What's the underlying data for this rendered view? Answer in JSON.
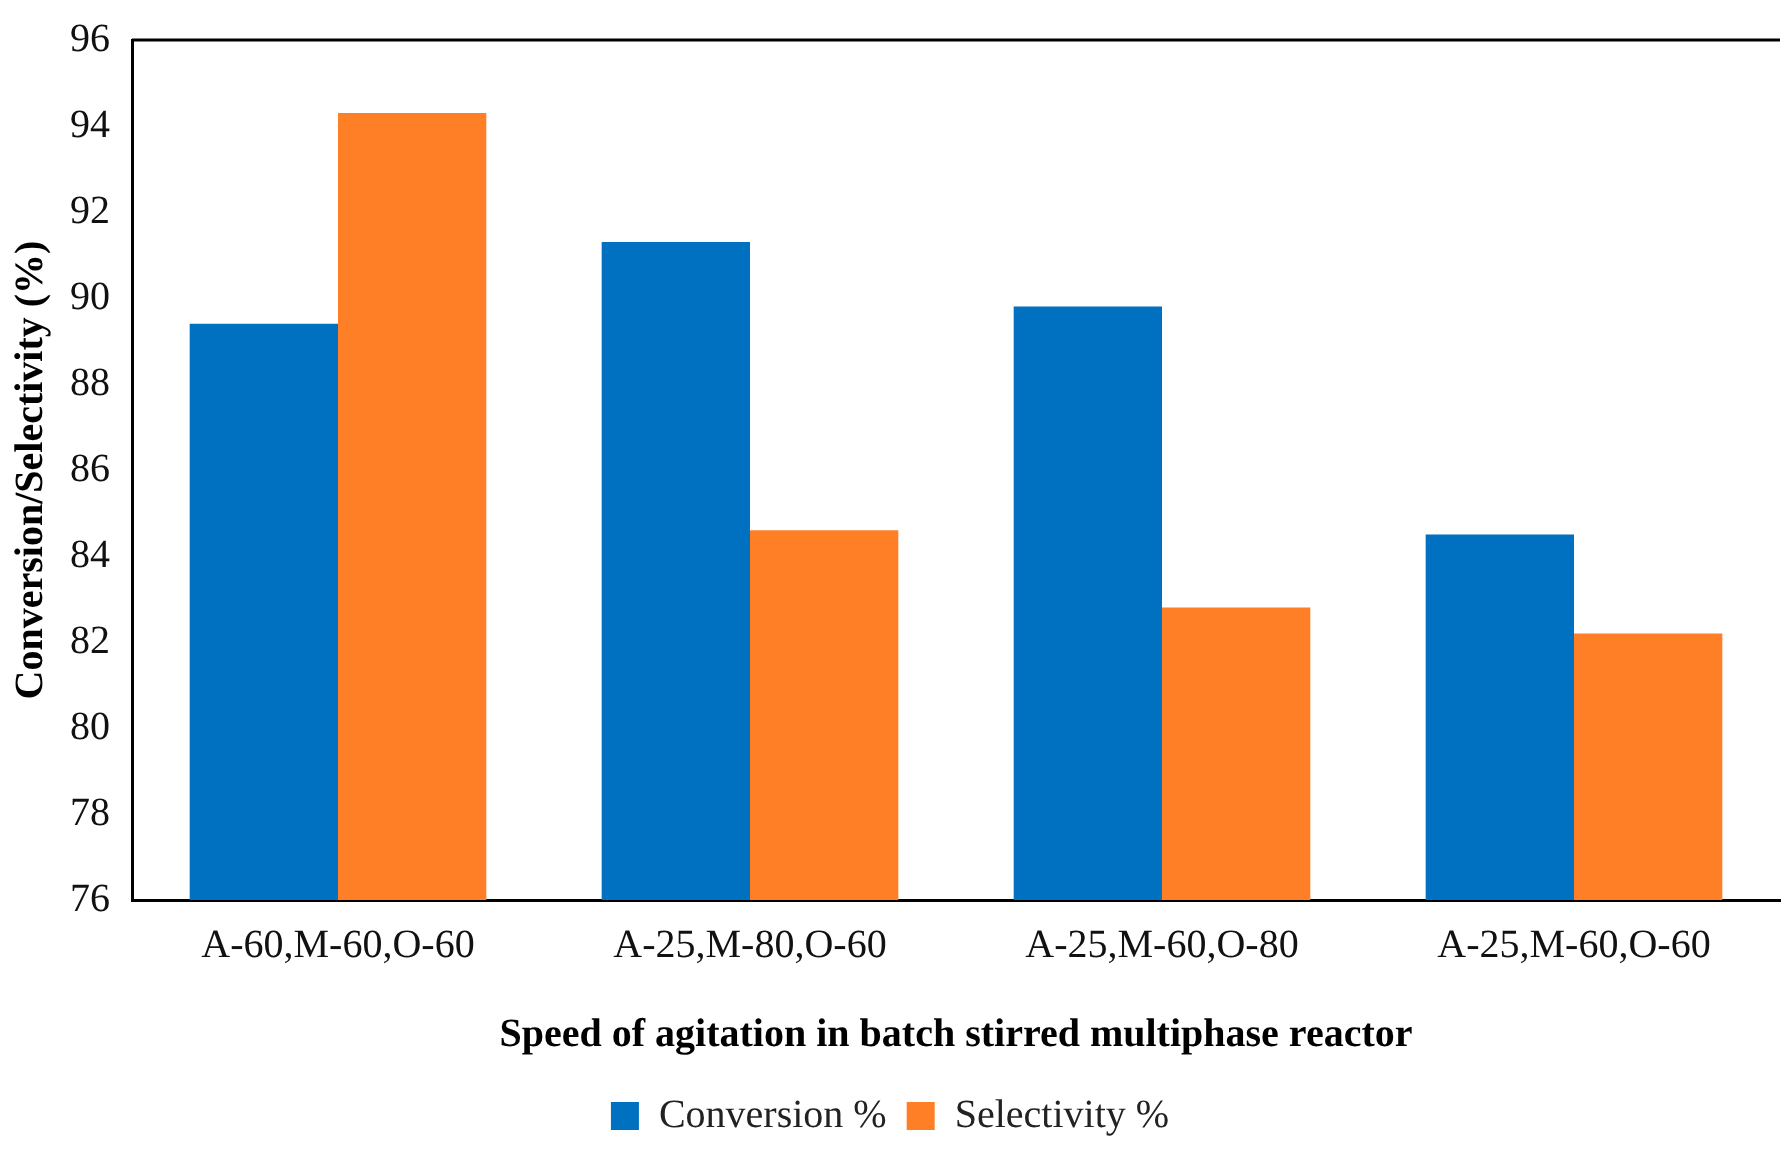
{
  "chart_data": {
    "type": "bar",
    "xlabel": "Speed of agitation in batch stirred multiphase reactor",
    "ylabel": "Conversion/Selectivity (%)",
    "categories": [
      "A-60,M-60,O-60",
      "A-25,M-80,O-60",
      "A-25,M-60,O-80",
      "A-25,M-60,O-60"
    ],
    "series": [
      {
        "name": "Conversion %",
        "color": "#0070c0",
        "values": [
          89.4,
          91.3,
          89.8,
          84.5
        ]
      },
      {
        "name": "Selectivity %",
        "color": "#ff7f27",
        "values": [
          94.3,
          84.6,
          82.8,
          82.2
        ]
      }
    ],
    "ylim": [
      76,
      96
    ],
    "yticks": [
      76,
      78,
      80,
      82,
      84,
      86,
      88,
      90,
      92,
      94,
      96
    ],
    "grid": false,
    "legend": "bottom"
  }
}
